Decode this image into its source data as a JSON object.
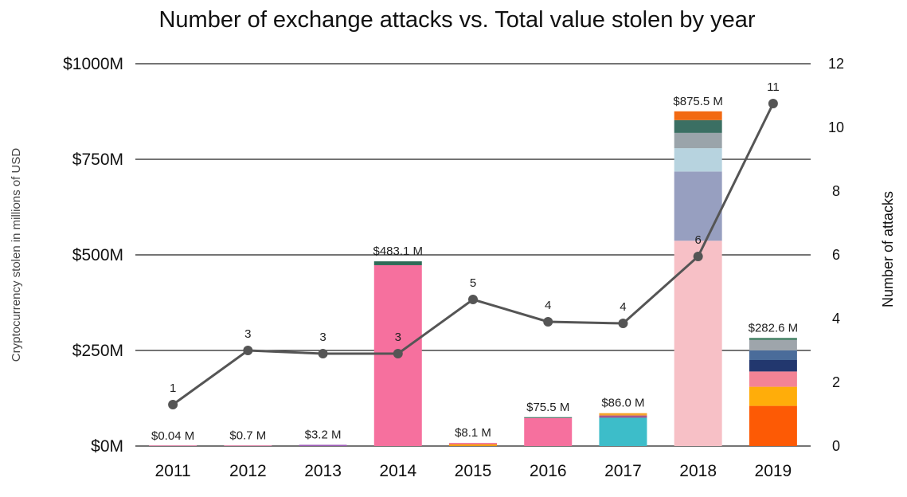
{
  "chart_data": {
    "type": "bar",
    "title": "Number of exchange attacks vs. Total value stolen by year",
    "ylabel": "Cryptocurrency stolen in millions of USD",
    "y2label": "Number of attacks",
    "ylim": [
      0,
      1000
    ],
    "y2lim": [
      0,
      12
    ],
    "yticks": [
      "$0M",
      "$250M",
      "$500M",
      "$750M",
      "$1000M"
    ],
    "y2ticks": [
      "0",
      "2",
      "4",
      "6",
      "8",
      "10",
      "12"
    ],
    "categories": [
      "2011",
      "2012",
      "2013",
      "2014",
      "2015",
      "2016",
      "2017",
      "2018",
      "2019"
    ],
    "totals": [
      0.04,
      0.7,
      3.2,
      483.1,
      8.1,
      75.5,
      86.0,
      875.5,
      282.6
    ],
    "total_labels": [
      "$0.04 M",
      "$0.7 M",
      "$3.2 M",
      "$483.1 M",
      "$8.1 M",
      "$75.5 M",
      "$86.0 M",
      "$875.5 M",
      "$282.6 M"
    ],
    "stacks": [
      [
        {
          "value": 0.04,
          "color": "#f06aa0"
        }
      ],
      [
        {
          "value": 0.7,
          "color": "#f06aa0"
        }
      ],
      [
        {
          "value": 3.2,
          "color": "#9b59b6"
        }
      ],
      [
        {
          "value": 473.0,
          "color": "#f6709e"
        },
        {
          "value": 10.1,
          "color": "#2e6b57"
        }
      ],
      [
        {
          "value": 5.0,
          "color": "#f39c12"
        },
        {
          "value": 3.1,
          "color": "#f06aa0"
        }
      ],
      [
        {
          "value": 73.5,
          "color": "#f6709e"
        },
        {
          "value": 2.0,
          "color": "#2e6b57"
        }
      ],
      [
        {
          "value": 74.0,
          "color": "#3dbdc9"
        },
        {
          "value": 6.0,
          "color": "#a5568f"
        },
        {
          "value": 6.0,
          "color": "#f4a52c"
        }
      ],
      [
        {
          "value": 537.0,
          "color": "#f7c0c6"
        },
        {
          "value": 181.0,
          "color": "#979fc0"
        },
        {
          "value": 61.0,
          "color": "#b7d3df"
        },
        {
          "value": 40.0,
          "color": "#9aa4aa"
        },
        {
          "value": 33.5,
          "color": "#3b6f63"
        },
        {
          "value": 23.0,
          "color": "#f26a12"
        }
      ],
      [
        {
          "value": 105.0,
          "color": "#fd5a05"
        },
        {
          "value": 50.0,
          "color": "#ffad0a"
        },
        {
          "value": 40.0,
          "color": "#f38395"
        },
        {
          "value": 30.0,
          "color": "#22376e"
        },
        {
          "value": 25.0,
          "color": "#4a6c9a"
        },
        {
          "value": 27.6,
          "color": "#9ea5ab"
        },
        {
          "value": 5.0,
          "color": "#3a7a5c"
        }
      ]
    ],
    "attacks": [
      1,
      3,
      3,
      3,
      5,
      4,
      4,
      6,
      11
    ],
    "attack_points": [
      1.3,
      3.0,
      2.9,
      2.9,
      4.6,
      3.9,
      3.85,
      5.95,
      10.75
    ],
    "line_color": "#555555",
    "grid": true
  }
}
